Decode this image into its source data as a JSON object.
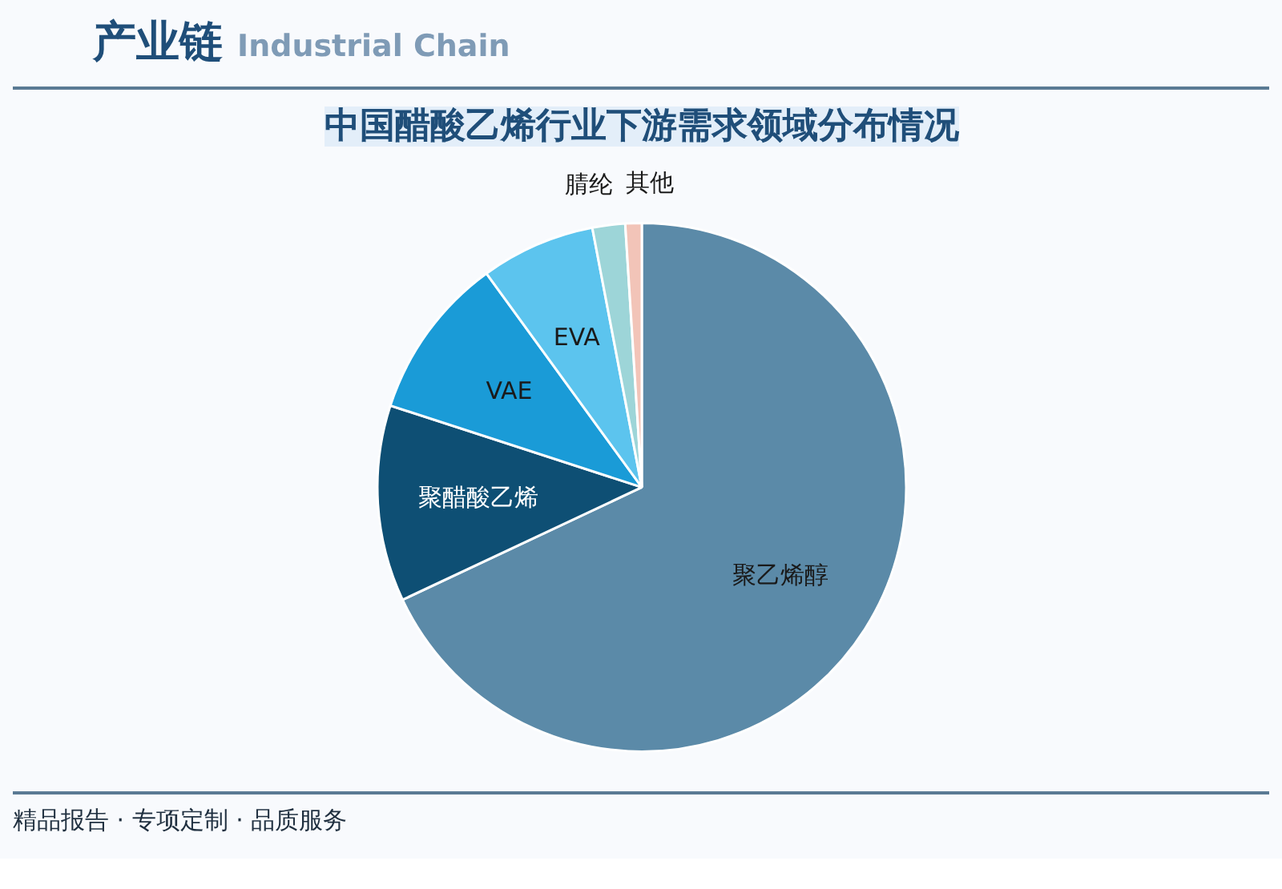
{
  "chart_data": {
    "type": "pie",
    "title": "中国醋酸乙烯行业下游需求领域分布情况",
    "categories": [
      "聚乙烯醇",
      "聚醋酸乙烯",
      "VAE",
      "EVA",
      "腈纶",
      "其他"
    ],
    "values": [
      68,
      12,
      10,
      7,
      2,
      1
    ],
    "colors": [
      "#5b8aa8",
      "#0e4f74",
      "#1a9bd7",
      "#5cc4ee",
      "#9dd5d8",
      "#f2c4b8"
    ],
    "annotations": [
      "产业链",
      "Industrial Chain",
      "精品报告 · 专项定制 · 品质服务"
    ]
  }
}
